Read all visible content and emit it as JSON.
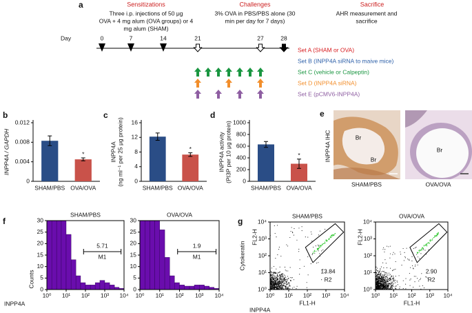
{
  "timeline": {
    "panel": "a",
    "headings": [
      "Sensitizations",
      "Challenges",
      "Sacrifice"
    ],
    "descriptions": [
      [
        "Three i.p. injections of 50 μg",
        "OVA + 4 mg alum (OVA  groups) or 4",
        "mg alum (SHAM)"
      ],
      [
        "3% OVA in PBS/PBS alone (30",
        "min per day for 7 days)"
      ],
      [
        "AHR measurement and",
        "sacrifice"
      ]
    ],
    "day_label": "Day",
    "days": [
      0,
      7,
      14,
      21,
      27,
      28
    ],
    "sets": [
      {
        "label": "Set A (SHAM or OVA)",
        "color": "#d7191c"
      },
      {
        "label": "Set B (INPP4A siRNA to maive mice)",
        "color": "#2c5fa8"
      },
      {
        "label": "Set C (vehicle or Calpeptin)",
        "color": "#1a9641"
      },
      {
        "label": "Set D (INPP4A siRNA)",
        "color": "#f28e2b"
      },
      {
        "label": "Set E (pCMV6-INPP4A)",
        "color": "#8e5ea2"
      }
    ]
  },
  "chart_data": [
    {
      "type": "bar",
      "panel": "b",
      "ylabel": [
        "INPP4A / GAPDH"
      ],
      "categories": [
        "SHAM/PBS",
        "OVA/OVA"
      ],
      "values": [
        0.0083,
        0.0045
      ],
      "errors": [
        0.001,
        0.0003
      ],
      "value_annotations": [
        null,
        "*"
      ],
      "colors": [
        "#2a4d86",
        "#c9524a"
      ],
      "ylim": [
        0,
        0.012
      ],
      "yticks": [
        0,
        0.004,
        0.008,
        0.012
      ]
    },
    {
      "type": "bar",
      "panel": "c",
      "ylabel": [
        "INPP4A",
        "(ng ml⁻¹ per 25 μg protein)"
      ],
      "categories": [
        "SHAM/PBS",
        "OVA/OVA"
      ],
      "values": [
        12.2,
        7.3
      ],
      "errors": [
        1,
        0.5
      ],
      "value_annotations": [
        null,
        "*"
      ],
      "colors": [
        "#2a4d86",
        "#c9524a"
      ],
      "ylim": [
        0,
        16
      ],
      "yticks": [
        0,
        4,
        8,
        12,
        16
      ]
    },
    {
      "type": "bar",
      "panel": "d",
      "ylabel": [
        "INPP4A activity",
        "(PI3P per 10 μg protein)"
      ],
      "categories": [
        "SHAM/PBS",
        "OVA/OVA"
      ],
      "values": [
        630,
        300
      ],
      "errors": [
        50,
        80
      ],
      "value_annotations": [
        null,
        "*"
      ],
      "colors": [
        "#2a4d86",
        "#c9524a"
      ],
      "ylim": [
        0,
        1000
      ],
      "yticks": [
        0,
        200,
        400,
        600,
        800,
        1000
      ]
    },
    {
      "type": "histogram",
      "panel": "f",
      "title": "SHAM/PBS",
      "ylabel": "Counts",
      "xlabel": "INPP4A",
      "xscale": "log",
      "color": "#6a0dad",
      "bins": [
        1,
        1.8,
        3.2,
        5.6,
        10,
        18,
        32,
        56,
        100,
        180,
        320,
        560,
        1000,
        1800,
        3200,
        5600,
        10000
      ],
      "values": [
        30,
        30,
        30,
        30,
        24,
        13,
        6,
        3,
        2,
        2,
        3,
        4,
        3,
        2,
        1,
        0.5
      ],
      "gate_label": "M1",
      "gate_value": 5.71,
      "gate_range": [
        80,
        7000
      ],
      "xlim": [
        1,
        10000
      ],
      "xticks": [
        {
          "value": 1,
          "label": "10⁰"
        },
        {
          "value": 10,
          "label": "10¹"
        },
        {
          "value": 100,
          "label": "10²"
        },
        {
          "value": 1000,
          "label": "10³"
        },
        {
          "value": 10000,
          "label": "10⁴"
        }
      ],
      "ylim": [
        0,
        30
      ],
      "yticks": [
        0,
        5,
        10,
        15,
        20,
        25,
        30
      ]
    },
    {
      "type": "histogram",
      "title": "OVA/OVA",
      "xscale": "log",
      "color": "#6a0dad",
      "bins": [
        1,
        1.8,
        3.2,
        5.6,
        10,
        18,
        32,
        56,
        100,
        180,
        320,
        560,
        1000,
        1800,
        3200,
        5600,
        10000
      ],
      "values": [
        30,
        30,
        30,
        30,
        26,
        14,
        6,
        3,
        2,
        1.5,
        1.5,
        2,
        2,
        1.5,
        1,
        0.5
      ],
      "gate_label": "M1",
      "gate_value": 1.9,
      "gate_range": [
        80,
        7000
      ],
      "xlim": [
        1,
        10000
      ],
      "xticks": [
        {
          "value": 1,
          "label": "10⁰"
        },
        {
          "value": 10,
          "label": "10¹"
        },
        {
          "value": 100,
          "label": "10²"
        },
        {
          "value": 1000,
          "label": "10³"
        },
        {
          "value": 10000,
          "label": "10⁴"
        }
      ],
      "ylim": [
        0,
        30
      ],
      "yticks": [
        0,
        5,
        10,
        15,
        20,
        25,
        30
      ]
    },
    {
      "type": "scatter",
      "panel": "g",
      "title": "SHAM/PBS",
      "ylabel": "FL2-H",
      "xlabel": "FL1-H",
      "outer_ylabel": "Cytokeratin",
      "outer_xlabel": "INPP4A",
      "xscale": "log",
      "yscale": "log",
      "gate_label": "R2",
      "gate_value": 13.84,
      "xlim": [
        1,
        10000
      ],
      "ylim": [
        1,
        10000
      ],
      "xticks": [
        {
          "value": 1,
          "label": "10⁰"
        },
        {
          "value": 10,
          "label": "10¹"
        },
        {
          "value": 100,
          "label": "10²"
        },
        {
          "value": 1000,
          "label": "10³"
        },
        {
          "value": 10000,
          "label": "10⁴"
        }
      ],
      "yticks": [
        {
          "value": 1,
          "label": "10⁰"
        },
        {
          "value": 10,
          "label": "10¹"
        },
        {
          "value": 100,
          "label": "10²"
        },
        {
          "value": 1000,
          "label": "10³"
        },
        {
          "value": 10000,
          "label": "10⁴"
        }
      ]
    },
    {
      "type": "scatter",
      "title": "OVA/OVA",
      "ylabel": "FL2-H",
      "xlabel": "FL1-H",
      "xscale": "log",
      "yscale": "log",
      "gate_label": "R2",
      "gate_value": 2.9,
      "gate_value_label": "2.90",
      "xlim": [
        1,
        10000
      ],
      "ylim": [
        1,
        10000
      ],
      "xticks": [
        {
          "value": 1,
          "label": "10⁰"
        },
        {
          "value": 10,
          "label": "10¹"
        },
        {
          "value": 100,
          "label": "10²"
        },
        {
          "value": 1000,
          "label": "10³"
        },
        {
          "value": 10000,
          "label": "10⁴"
        }
      ],
      "yticks": [
        {
          "value": 1,
          "label": "10⁰"
        },
        {
          "value": 10,
          "label": "10¹"
        },
        {
          "value": 100,
          "label": "10²"
        },
        {
          "value": 1000,
          "label": "10³"
        },
        {
          "value": 10000,
          "label": "10⁴"
        }
      ]
    }
  ],
  "ihc": {
    "panel": "e",
    "ylabel": "INPP4A IHC",
    "annotations": [
      "Br",
      "Br",
      "Br"
    ],
    "captions": [
      "SHAM/PBS",
      "OVA/OVA"
    ]
  }
}
